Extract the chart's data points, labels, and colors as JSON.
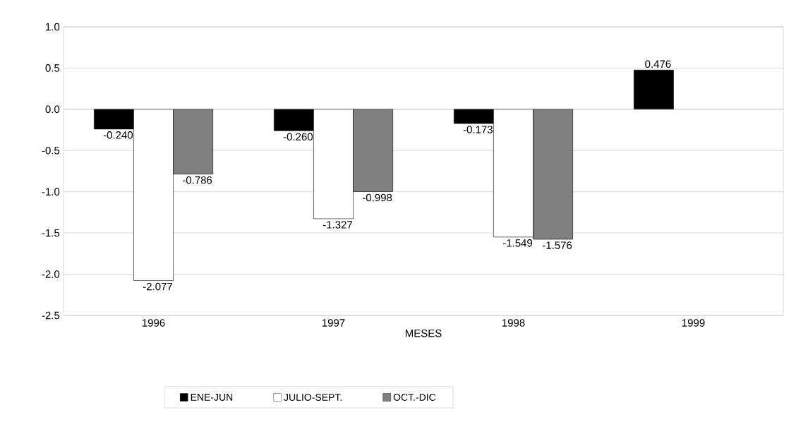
{
  "chart_data": {
    "type": "bar",
    "xlabel": "MESES",
    "categories": [
      "1996",
      "1997",
      "1998",
      "1999"
    ],
    "series": [
      {
        "name": "ENE-JUN",
        "color": "#000000",
        "values": [
          -0.24,
          -0.26,
          -0.173,
          0.476
        ],
        "value_labels": [
          "-0.240",
          "-0.260",
          "-0.173",
          "0.476"
        ]
      },
      {
        "name": "JULIO-SEPT.",
        "color": "#ffffff",
        "values": [
          -2.077,
          -1.327,
          -1.549,
          null
        ],
        "value_labels": [
          "-2.077",
          "-1.327",
          "-1.549",
          null
        ]
      },
      {
        "name": "OCT.-DIC",
        "color": "#808080",
        "values": [
          -0.786,
          -0.998,
          -1.576,
          null
        ],
        "value_labels": [
          "-0.786",
          "-0.998",
          "-1.576",
          null
        ]
      }
    ],
    "ylim": [
      -2.5,
      1.0
    ],
    "yticks": [
      {
        "value": -2.5,
        "label": "-2.5"
      },
      {
        "value": -2.0,
        "label": "-2.0"
      },
      {
        "value": -1.5,
        "label": "-1.5"
      },
      {
        "value": -1.0,
        "label": "-1.0"
      },
      {
        "value": -0.5,
        "label": "-0.5"
      },
      {
        "value": 0.0,
        "label": "0.0"
      },
      {
        "value": 0.5,
        "label": "0.5"
      },
      {
        "value": 1.0,
        "label": "1.0"
      }
    ],
    "grid": "y",
    "legend": "bottom"
  }
}
